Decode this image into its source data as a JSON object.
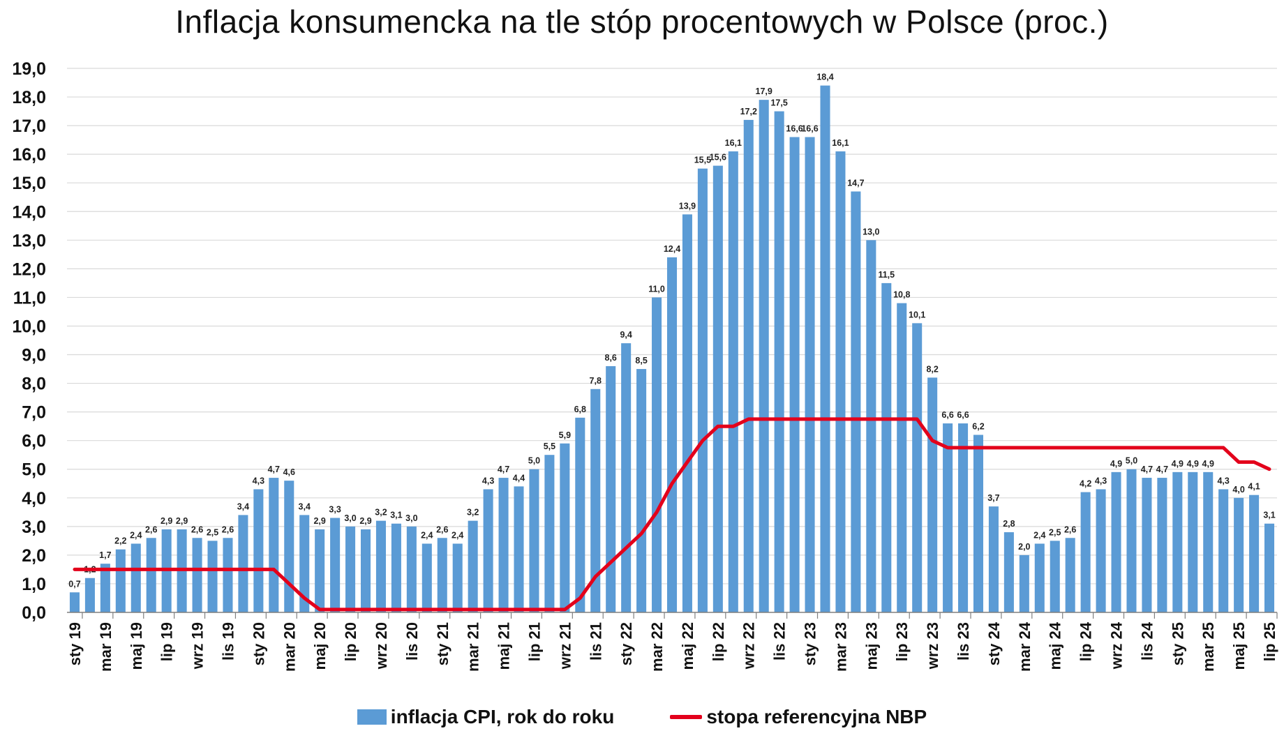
{
  "chart_data": {
    "type": "bar",
    "title": "Inflacja konsumencka na tle stóp procentowych w Polsce (proc.)",
    "ylim": [
      0,
      19
    ],
    "y_ticks": [
      "0,0",
      "1,0",
      "2,0",
      "3,0",
      "4,0",
      "5,0",
      "6,0",
      "7,0",
      "8,0",
      "9,0",
      "10,0",
      "11,0",
      "12,0",
      "13,0",
      "14,0",
      "15,0",
      "16,0",
      "17,0",
      "18,0",
      "19,0"
    ],
    "grid": true,
    "legend_position": "bottom",
    "categories": [
      "sty 19",
      "lut 19",
      "mar 19",
      "kwi 19",
      "maj 19",
      "cze 19",
      "lip 19",
      "sie 19",
      "wrz 19",
      "paź 19",
      "lis 19",
      "gru 19",
      "sty 20",
      "lut 20",
      "mar 20",
      "kwi 20",
      "maj 20",
      "cze 20",
      "lip 20",
      "sie 20",
      "wrz 20",
      "paź 20",
      "lis 20",
      "gru 20",
      "sty 21",
      "lut 21",
      "mar 21",
      "kwi 21",
      "maj 21",
      "cze 21",
      "lip 21",
      "sie 21",
      "wrz 21",
      "paź 21",
      "lis 21",
      "gru 21",
      "sty 22",
      "lut 22",
      "mar 22",
      "kwi 22",
      "maj 22",
      "cze 22",
      "lip 22",
      "sie 22",
      "wrz 22",
      "paź 22",
      "lis 22",
      "gru 22",
      "sty 23",
      "lut 23",
      "mar 23",
      "kwi 23",
      "maj 23",
      "cze 23",
      "lip 23",
      "sie 23",
      "wrz 23",
      "paź 23",
      "lis 23",
      "gru 23",
      "sty 24",
      "lut 24",
      "mar 24",
      "kwi 24",
      "maj 24",
      "cze 24",
      "lip 24",
      "sie 24",
      "wrz 24",
      "paź 24",
      "lis 24",
      "gru 24",
      "sty 25",
      "lut 25",
      "mar 25",
      "kwi 25",
      "maj 25",
      "cze 25",
      "lip 25"
    ],
    "visible_x_labels": [
      "sty 19",
      "mar 19",
      "maj 19",
      "lip 19",
      "wrz 19",
      "lis 19",
      "sty 20",
      "mar 20",
      "maj 20",
      "lip 20",
      "wrz 20",
      "lis 20",
      "sty 21",
      "mar 21",
      "maj 21",
      "lip 21",
      "wrz 21",
      "lis 21",
      "sty 22",
      "mar 22",
      "maj 22",
      "lip 22",
      "wrz 22",
      "lis 22",
      "sty 23",
      "mar 23",
      "maj 23",
      "lip 23",
      "wrz 23",
      "lis 23",
      "sty 24",
      "mar 24",
      "maj 24",
      "lip 24",
      "wrz 24",
      "lis 24",
      "sty 25",
      "mar 25",
      "maj 25",
      "lip 25"
    ],
    "series": [
      {
        "name": "inflacja CPI, rok do roku",
        "type": "bar",
        "color": "#5B9BD5",
        "values": [
          0.7,
          1.2,
          1.7,
          2.2,
          2.4,
          2.6,
          2.9,
          2.9,
          2.6,
          2.5,
          2.6,
          3.4,
          4.3,
          4.7,
          4.6,
          3.4,
          2.9,
          3.3,
          3.0,
          2.9,
          3.2,
          3.1,
          3.0,
          2.4,
          2.6,
          2.4,
          3.2,
          4.3,
          4.7,
          4.4,
          5.0,
          5.5,
          5.9,
          6.8,
          7.8,
          8.6,
          9.4,
          8.5,
          11.0,
          12.4,
          13.9,
          15.5,
          15.6,
          16.1,
          17.2,
          17.9,
          17.5,
          16.6,
          16.6,
          18.4,
          16.1,
          14.7,
          13.0,
          11.5,
          10.8,
          10.1,
          8.2,
          6.6,
          6.6,
          6.2,
          3.7,
          2.8,
          2.0,
          2.4,
          2.5,
          2.6,
          4.2,
          4.3,
          4.9,
          5.0,
          4.7,
          4.7,
          4.9,
          4.9,
          4.9,
          4.3,
          4.0,
          4.1,
          3.1
        ],
        "labels": [
          "0,7",
          "1,2",
          "1,7",
          "2,2",
          "2,4",
          "2,6",
          "2,9",
          "2,9",
          "2,6",
          "2,5",
          "2,6",
          "3,4",
          "4,3",
          "4,7",
          "4,6",
          "3,4",
          "2,9",
          "3,3",
          "3,0",
          "2,9",
          "3,2",
          "3,1",
          "3,0",
          "2,4",
          "2,6",
          "2,4",
          "3,2",
          "4,3",
          "4,7",
          "4,4",
          "5,0",
          "5,5",
          "5,9",
          "6,8",
          "7,8",
          "8,6",
          "9,4",
          "8,5",
          "11,0",
          "12,4",
          "13,9",
          "15,5",
          "15,6",
          "16,1",
          "17,2",
          "17,9",
          "17,5",
          "16,6",
          "16,6",
          "18,4",
          "16,1",
          "14,7",
          "13,0",
          "11,5",
          "10,8",
          "10,1",
          "8,2",
          "6,6",
          "6,6",
          "6,2",
          "3,7",
          "2,8",
          "2,0",
          "2,4",
          "2,5",
          "2,6",
          "4,2",
          "4,3",
          "4,9",
          "5,0",
          "4,7",
          "4,7",
          "4,9",
          "4,9",
          "4,9",
          "4,3",
          "4,0",
          "4,1",
          "3,1"
        ]
      },
      {
        "name": "stopa referencyjna NBP",
        "type": "line",
        "color": "#E3001B",
        "values": [
          1.5,
          1.5,
          1.5,
          1.5,
          1.5,
          1.5,
          1.5,
          1.5,
          1.5,
          1.5,
          1.5,
          1.5,
          1.5,
          1.5,
          1.0,
          0.5,
          0.1,
          0.1,
          0.1,
          0.1,
          0.1,
          0.1,
          0.1,
          0.1,
          0.1,
          0.1,
          0.1,
          0.1,
          0.1,
          0.1,
          0.1,
          0.1,
          0.1,
          0.5,
          1.25,
          1.75,
          2.25,
          2.75,
          3.5,
          4.5,
          5.25,
          6.0,
          6.5,
          6.5,
          6.75,
          6.75,
          6.75,
          6.75,
          6.75,
          6.75,
          6.75,
          6.75,
          6.75,
          6.75,
          6.75,
          6.75,
          6.0,
          5.75,
          5.75,
          5.75,
          5.75,
          5.75,
          5.75,
          5.75,
          5.75,
          5.75,
          5.75,
          5.75,
          5.75,
          5.75,
          5.75,
          5.75,
          5.75,
          5.75,
          5.75,
          5.75,
          5.25,
          5.25,
          5.0
        ]
      }
    ]
  }
}
